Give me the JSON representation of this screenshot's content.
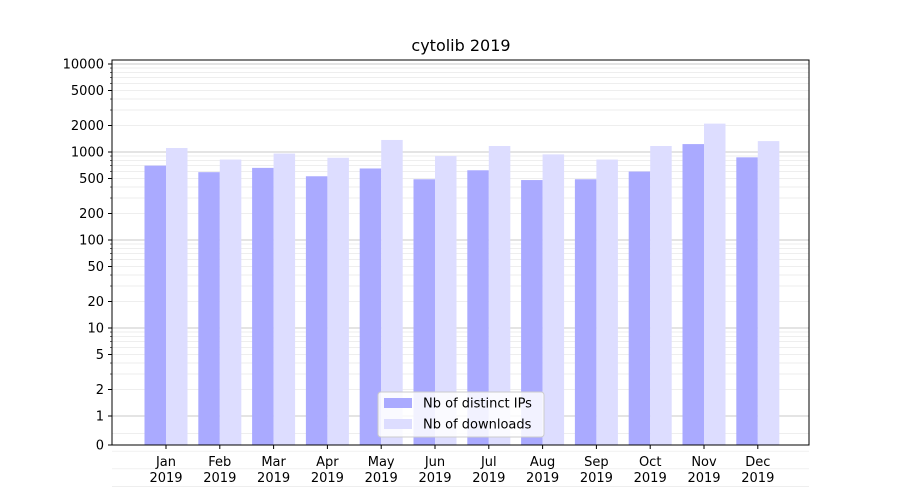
{
  "chart_data": {
    "type": "bar",
    "title": "cytolib 2019",
    "xlabel": "",
    "ylabel": "",
    "yscale": "symlog",
    "ylim": [
      0,
      10000
    ],
    "yticks": [
      0,
      1,
      2,
      5,
      10,
      20,
      50,
      100,
      200,
      500,
      1000,
      2000,
      5000,
      10000
    ],
    "grid": true,
    "legend_position": "bottom-center",
    "categories": [
      [
        "Jan",
        "2019"
      ],
      [
        "Feb",
        "2019"
      ],
      [
        "Mar",
        "2019"
      ],
      [
        "Apr",
        "2019"
      ],
      [
        "May",
        "2019"
      ],
      [
        "Jun",
        "2019"
      ],
      [
        "Jul",
        "2019"
      ],
      [
        "Aug",
        "2019"
      ],
      [
        "Sep",
        "2019"
      ],
      [
        "Oct",
        "2019"
      ],
      [
        "Nov",
        "2019"
      ],
      [
        "Dec",
        "2019"
      ]
    ],
    "series": [
      {
        "name": "Nb of distinct IPs",
        "color": "#aaaaff",
        "values": [
          700,
          590,
          660,
          530,
          650,
          490,
          620,
          480,
          490,
          600,
          1230,
          870
        ]
      },
      {
        "name": "Nb of downloads",
        "color": "#ddddff",
        "values": [
          1110,
          820,
          960,
          860,
          1370,
          900,
          1170,
          940,
          820,
          1170,
          2100,
          1330
        ]
      }
    ]
  }
}
